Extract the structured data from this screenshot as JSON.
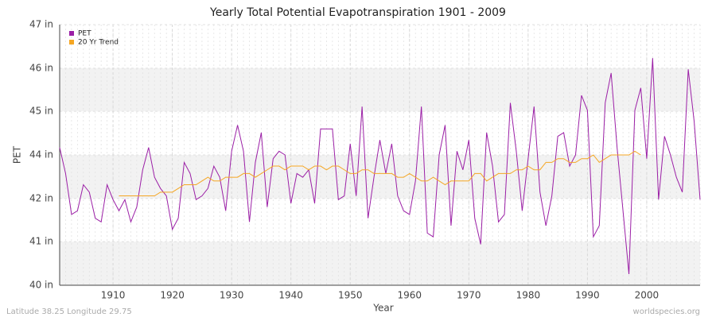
{
  "chart_data": {
    "type": "line",
    "title": "Yearly Total Potential Evapotranspiration 1901 - 2009",
    "xlabel": "Year",
    "ylabel": "PET",
    "footer_left": "Latitude 38.25 Longitude 29.75",
    "footer_right": "worldspecies.org",
    "x": [
      1901,
      1902,
      1903,
      1904,
      1905,
      1906,
      1907,
      1908,
      1909,
      1910,
      1911,
      1912,
      1913,
      1914,
      1915,
      1916,
      1917,
      1918,
      1919,
      1920,
      1921,
      1922,
      1923,
      1924,
      1925,
      1926,
      1927,
      1928,
      1929,
      1930,
      1931,
      1932,
      1933,
      1934,
      1935,
      1936,
      1937,
      1938,
      1939,
      1940,
      1941,
      1942,
      1943,
      1944,
      1945,
      1946,
      1947,
      1948,
      1949,
      1950,
      1951,
      1952,
      1953,
      1954,
      1955,
      1956,
      1957,
      1958,
      1959,
      1960,
      1961,
      1962,
      1963,
      1964,
      1965,
      1966,
      1967,
      1968,
      1969,
      1970,
      1971,
      1972,
      1973,
      1974,
      1975,
      1976,
      1977,
      1978,
      1979,
      1980,
      1981,
      1982,
      1983,
      1984,
      1985,
      1986,
      1987,
      1988,
      1989,
      1990,
      1991,
      1992,
      1993,
      1994,
      1995,
      1996,
      1997,
      1998,
      1999,
      2000,
      2001,
      2002,
      2003,
      2004,
      2005,
      2006,
      2007,
      2008,
      2009
    ],
    "series": [
      {
        "name": "PET",
        "color": "#9b1fa6",
        "values": [
          43.7,
          43.0,
          41.9,
          42.0,
          42.7,
          42.5,
          41.8,
          41.7,
          42.7,
          42.3,
          42.0,
          42.3,
          41.7,
          42.1,
          43.1,
          43.7,
          42.9,
          42.6,
          42.4,
          41.5,
          41.8,
          43.3,
          43.0,
          42.3,
          42.4,
          42.6,
          43.2,
          42.9,
          42.0,
          43.6,
          44.3,
          43.6,
          41.7,
          43.3,
          44.1,
          42.1,
          43.4,
          43.6,
          43.5,
          42.2,
          43.0,
          42.9,
          43.1,
          42.2,
          44.2,
          44.2,
          44.2,
          42.3,
          42.4,
          43.8,
          42.4,
          44.8,
          41.8,
          42.9,
          43.9,
          43.0,
          43.8,
          42.4,
          42.0,
          41.9,
          42.8,
          44.8,
          41.4,
          41.3,
          43.5,
          44.3,
          41.6,
          43.6,
          43.1,
          43.9,
          41.8,
          41.1,
          44.1,
          43.2,
          41.7,
          41.9,
          44.9,
          43.6,
          42.0,
          43.4,
          44.8,
          42.5,
          41.6,
          42.4,
          44.0,
          44.1,
          43.2,
          43.5,
          45.1,
          44.7,
          41.3,
          41.6,
          44.9,
          45.7,
          43.7,
          42.0,
          40.3,
          44.7,
          45.3,
          43.4,
          46.1,
          42.3,
          44.0,
          43.5,
          42.9,
          42.5,
          45.8,
          44.4,
          42.3
        ]
      },
      {
        "name": "20 Yr Trend",
        "color": "#f5a623",
        "values": [
          null,
          null,
          null,
          null,
          null,
          null,
          null,
          null,
          null,
          null,
          42.4,
          42.4,
          42.4,
          42.4,
          42.4,
          42.4,
          42.4,
          42.5,
          42.5,
          42.5,
          42.6,
          42.7,
          42.7,
          42.7,
          42.8,
          42.9,
          42.8,
          42.8,
          42.9,
          42.9,
          42.9,
          43.0,
          43.0,
          42.9,
          43.0,
          43.1,
          43.2,
          43.2,
          43.1,
          43.2,
          43.2,
          43.2,
          43.1,
          43.2,
          43.2,
          43.1,
          43.2,
          43.2,
          43.1,
          43.0,
          43.0,
          43.1,
          43.1,
          43.0,
          43.0,
          43.0,
          43.0,
          42.9,
          42.9,
          43.0,
          42.9,
          42.8,
          42.8,
          42.9,
          42.8,
          42.7,
          42.8,
          42.8,
          42.8,
          42.8,
          43.0,
          43.0,
          42.8,
          42.9,
          43.0,
          43.0,
          43.0,
          43.1,
          43.1,
          43.2,
          43.1,
          43.1,
          43.3,
          43.3,
          43.4,
          43.4,
          43.3,
          43.3,
          43.4,
          43.4,
          43.5,
          43.3,
          43.4,
          43.5,
          43.5,
          43.5,
          43.5,
          43.6,
          43.5,
          null,
          null,
          null,
          null,
          null,
          null,
          null,
          null,
          null,
          null
        ]
      }
    ],
    "xlim": [
      1901,
      2009
    ],
    "xticks": [
      1910,
      1920,
      1930,
      1940,
      1950,
      1960,
      1970,
      1980,
      1990,
      2000
    ],
    "ylim": [
      40,
      47
    ],
    "yticks": [
      {
        "value": 40,
        "label": "40 in"
      },
      {
        "value": 41.17,
        "label": "41 in"
      },
      {
        "value": 42.33,
        "label": "42 in"
      },
      {
        "value": 43.5,
        "label": "44 in"
      },
      {
        "value": 44.67,
        "label": "45 in"
      },
      {
        "value": 45.83,
        "label": "46 in"
      },
      {
        "value": 47,
        "label": "47 in"
      }
    ],
    "grid": true,
    "legend": "top-left"
  }
}
